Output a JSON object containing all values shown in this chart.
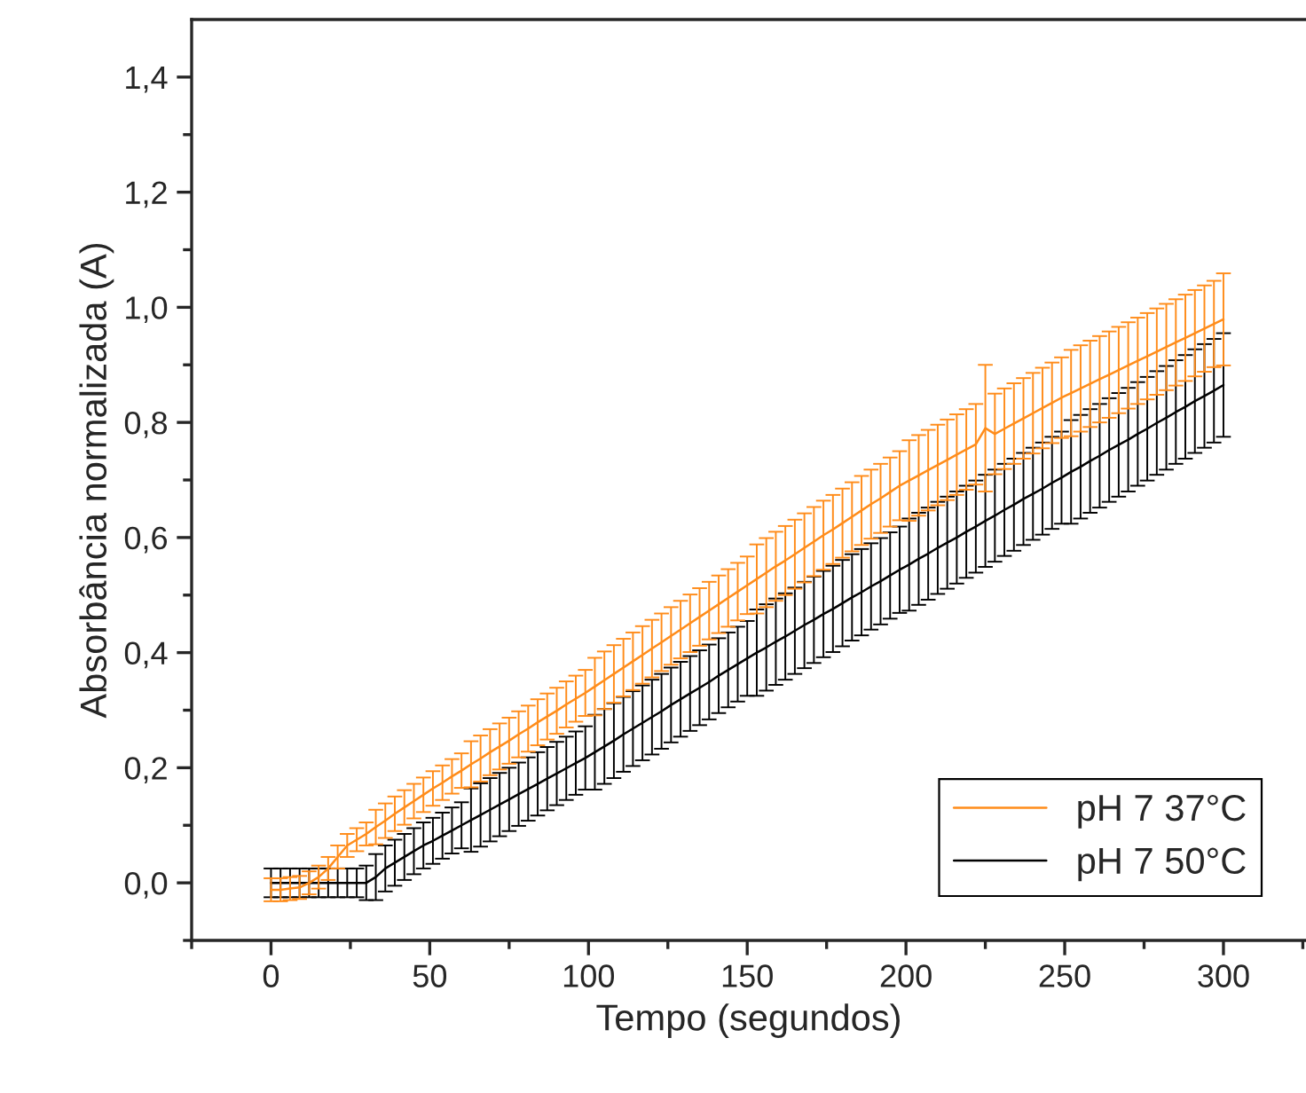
{
  "chart_data": {
    "type": "line",
    "xlabel": "Tempo (segundos)",
    "ylabel": "Absorbância normalizada (A)",
    "x": [
      0,
      3,
      6,
      9,
      12,
      15,
      18,
      21,
      24,
      27,
      30,
      33,
      36,
      39,
      42,
      45,
      48,
      51,
      54,
      57,
      60,
      63,
      66,
      69,
      72,
      75,
      78,
      81,
      84,
      87,
      90,
      93,
      96,
      99,
      102,
      105,
      108,
      111,
      114,
      117,
      120,
      123,
      126,
      129,
      132,
      135,
      138,
      141,
      144,
      147,
      150,
      153,
      156,
      159,
      162,
      165,
      168,
      171,
      174,
      177,
      180,
      183,
      186,
      189,
      192,
      195,
      198,
      201,
      204,
      207,
      210,
      213,
      216,
      219,
      222,
      225,
      228,
      231,
      234,
      237,
      240,
      243,
      246,
      249,
      252,
      255,
      258,
      261,
      264,
      267,
      270,
      273,
      276,
      279,
      282,
      285,
      288,
      291,
      294,
      297,
      300
    ],
    "series": [
      {
        "name": "pH 7 37°C",
        "color": "#ff8c1a",
        "values": [
          -0.012,
          -0.012,
          -0.01,
          -0.008,
          0.0,
          0.01,
          0.025,
          0.045,
          0.065,
          0.075,
          0.085,
          0.097,
          0.108,
          0.12,
          0.131,
          0.142,
          0.153,
          0.164,
          0.174,
          0.185,
          0.195,
          0.206,
          0.216,
          0.227,
          0.237,
          0.247,
          0.258,
          0.268,
          0.279,
          0.289,
          0.299,
          0.31,
          0.32,
          0.33,
          0.341,
          0.352,
          0.363,
          0.374,
          0.385,
          0.396,
          0.407,
          0.418,
          0.429,
          0.44,
          0.451,
          0.462,
          0.473,
          0.484,
          0.495,
          0.506,
          0.517,
          0.528,
          0.539,
          0.55,
          0.56,
          0.571,
          0.582,
          0.593,
          0.604,
          0.614,
          0.625,
          0.636,
          0.647,
          0.658,
          0.668,
          0.679,
          0.69,
          0.699,
          0.708,
          0.717,
          0.726,
          0.735,
          0.744,
          0.753,
          0.762,
          0.79,
          0.78,
          0.789,
          0.798,
          0.807,
          0.816,
          0.825,
          0.834,
          0.843,
          0.851,
          0.859,
          0.867,
          0.875,
          0.883,
          0.891,
          0.899,
          0.907,
          0.915,
          0.923,
          0.931,
          0.939,
          0.947,
          0.955,
          0.963,
          0.971,
          0.979
        ],
        "errors": [
          0.02,
          0.02,
          0.02,
          0.02,
          0.02,
          0.02,
          0.02,
          0.02,
          0.02,
          0.02,
          0.02,
          0.03,
          0.03,
          0.03,
          0.03,
          0.03,
          0.03,
          0.03,
          0.03,
          0.03,
          0.03,
          0.04,
          0.04,
          0.04,
          0.04,
          0.04,
          0.04,
          0.04,
          0.04,
          0.04,
          0.04,
          0.04,
          0.04,
          0.04,
          0.05,
          0.05,
          0.05,
          0.05,
          0.05,
          0.05,
          0.05,
          0.05,
          0.05,
          0.05,
          0.05,
          0.05,
          0.05,
          0.05,
          0.05,
          0.05,
          0.05,
          0.06,
          0.06,
          0.06,
          0.06,
          0.06,
          0.06,
          0.06,
          0.06,
          0.06,
          0.06,
          0.06,
          0.06,
          0.06,
          0.06,
          0.06,
          0.06,
          0.07,
          0.07,
          0.07,
          0.07,
          0.07,
          0.07,
          0.07,
          0.07,
          0.11,
          0.07,
          0.07,
          0.07,
          0.07,
          0.07,
          0.07,
          0.07,
          0.07,
          0.075,
          0.075,
          0.075,
          0.075,
          0.075,
          0.075,
          0.075,
          0.075,
          0.075,
          0.075,
          0.075,
          0.075,
          0.075,
          0.075,
          0.075,
          0.075,
          0.08
        ]
      },
      {
        "name": "pH 7 50°C",
        "color": "#000000",
        "values": [
          0,
          0,
          0,
          0,
          0,
          0,
          0,
          0,
          0,
          0,
          0,
          0.01,
          0.025,
          0.035,
          0.045,
          0.055,
          0.065,
          0.073,
          0.082,
          0.091,
          0.1,
          0.109,
          0.118,
          0.127,
          0.136,
          0.145,
          0.154,
          0.163,
          0.172,
          0.181,
          0.19,
          0.199,
          0.208,
          0.217,
          0.227,
          0.237,
          0.247,
          0.258,
          0.268,
          0.278,
          0.288,
          0.298,
          0.309,
          0.319,
          0.329,
          0.339,
          0.349,
          0.36,
          0.37,
          0.38,
          0.39,
          0.4,
          0.409,
          0.419,
          0.428,
          0.438,
          0.448,
          0.457,
          0.467,
          0.476,
          0.486,
          0.496,
          0.505,
          0.515,
          0.524,
          0.534,
          0.544,
          0.553,
          0.563,
          0.572,
          0.582,
          0.591,
          0.6,
          0.61,
          0.619,
          0.629,
          0.638,
          0.648,
          0.657,
          0.667,
          0.676,
          0.685,
          0.695,
          0.704,
          0.714,
          0.723,
          0.733,
          0.742,
          0.752,
          0.761,
          0.77,
          0.78,
          0.789,
          0.799,
          0.808,
          0.818,
          0.827,
          0.837,
          0.846,
          0.855,
          0.865
        ],
        "errors": [
          0.025,
          0.025,
          0.025,
          0.025,
          0.025,
          0.025,
          0.025,
          0.025,
          0.025,
          0.025,
          0.03,
          0.04,
          0.04,
          0.04,
          0.04,
          0.04,
          0.04,
          0.04,
          0.04,
          0.04,
          0.04,
          0.055,
          0.055,
          0.055,
          0.055,
          0.055,
          0.055,
          0.055,
          0.055,
          0.055,
          0.055,
          0.055,
          0.055,
          0.055,
          0.065,
          0.065,
          0.065,
          0.065,
          0.065,
          0.065,
          0.065,
          0.065,
          0.065,
          0.065,
          0.065,
          0.065,
          0.065,
          0.065,
          0.065,
          0.065,
          0.065,
          0.075,
          0.075,
          0.075,
          0.075,
          0.075,
          0.075,
          0.075,
          0.075,
          0.075,
          0.075,
          0.075,
          0.075,
          0.075,
          0.075,
          0.075,
          0.075,
          0.08,
          0.08,
          0.08,
          0.08,
          0.08,
          0.08,
          0.08,
          0.08,
          0.08,
          0.08,
          0.08,
          0.08,
          0.08,
          0.08,
          0.08,
          0.08,
          0.08,
          0.09,
          0.09,
          0.09,
          0.09,
          0.09,
          0.09,
          0.09,
          0.09,
          0.09,
          0.09,
          0.09,
          0.09,
          0.09,
          0.09,
          0.09,
          0.09,
          0.09
        ]
      }
    ],
    "xlim": [
      -25,
      326
    ],
    "ylim": [
      -0.1,
      1.5
    ],
    "xticks": [
      0,
      50,
      100,
      150,
      200,
      250,
      300
    ],
    "yticks": [
      {
        "value": 0,
        "label": "0,0"
      },
      {
        "value": 0.2,
        "label": "0,2"
      },
      {
        "value": 0.4,
        "label": "0,4"
      },
      {
        "value": 0.6,
        "label": "0,6"
      },
      {
        "value": 0.8,
        "label": "0,8"
      },
      {
        "value": 1.0,
        "label": "1,0"
      },
      {
        "value": 1.2,
        "label": "1,2"
      },
      {
        "value": 1.4,
        "label": "1,4"
      }
    ],
    "legend": "lower right",
    "grid": false,
    "marker": "none",
    "line_style": "solid"
  }
}
